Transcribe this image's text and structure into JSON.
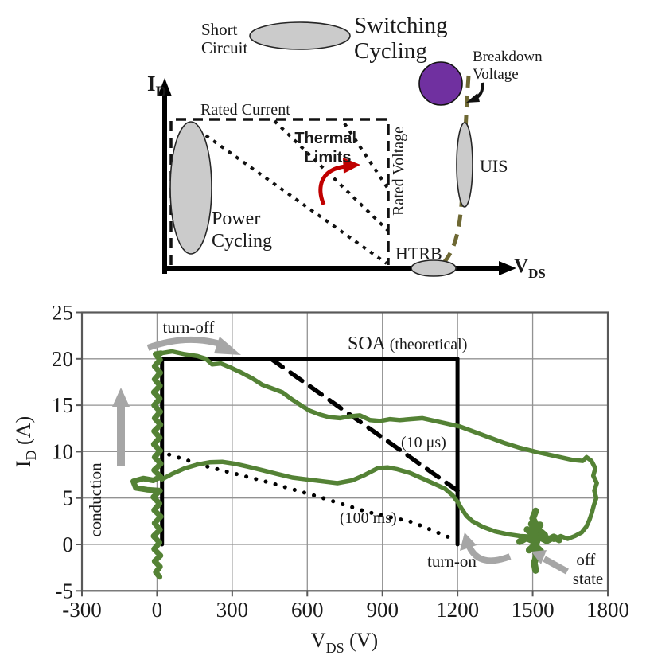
{
  "figure": {
    "top_diagram": {
      "y_axis_sym": "I",
      "y_axis_sub": "D",
      "x_axis_sym": "V",
      "x_axis_sub": "DS",
      "labels": {
        "short_circuit_1": "Short",
        "short_circuit_2": "Circuit",
        "switching_cycling_1": "Switching",
        "switching_cycling_2": "Cycling",
        "breakdown_1": "Breakdown",
        "breakdown_2": "Voltage",
        "rated_current": "Rated Current",
        "rated_voltage": "Rated Voltage",
        "thermal_1": "Thermal",
        "thermal_2": "Limits",
        "power_cycling_1": "Power",
        "power_cycling_2": "Cycling",
        "uis": "UIS",
        "htrb": "HTRB"
      },
      "colors": {
        "ellipse_fill": "#cbcbcb",
        "purple_fill": "#7030a0",
        "thermal_red": "#c00000",
        "breakdown_dash": "#6e6833",
        "axis_black": "#000000"
      }
    },
    "chart": {
      "axis_titles": {
        "y_sym": "I",
        "y_sub": "D",
        "y_unit": " (A)",
        "x_sym": "V",
        "x_sub": "DS",
        "x_unit": " (V)"
      },
      "annotations": {
        "turn_off": "turn-off",
        "conduction": "conduction",
        "soa_1": "SOA ",
        "soa_2": "(theoretical)",
        "t_10us": "(10 μs)",
        "t_100ms": "(100 ms)",
        "turn_on": "turn-on",
        "off_state_1": "off",
        "off_state_2": "state"
      },
      "colors": {
        "curve_green": "#548235",
        "grid_gray": "#929292",
        "border_gray": "#595959",
        "arrow_gray": "#a6a6a6",
        "soa_black": "#000000"
      }
    }
  },
  "chart_data": {
    "type": "line",
    "title": "",
    "xlabel": "V_DS (V)",
    "ylabel": "I_D (A)",
    "xlim": [
      -300,
      1800
    ],
    "ylim": [
      -5,
      25
    ],
    "grid": true,
    "legend": "none",
    "xticks": [
      -300,
      0,
      300,
      600,
      900,
      1200,
      1500,
      1800
    ],
    "yticks": [
      25,
      20,
      15,
      10,
      5,
      0,
      -5
    ],
    "series": [
      {
        "name": "SOA (theoretical) boundary",
        "style": "solid-black",
        "points": [
          [
            20,
            0
          ],
          [
            20,
            20
          ],
          [
            1200,
            20
          ],
          [
            1200,
            0
          ]
        ]
      },
      {
        "name": "SOA limit (10 us)",
        "style": "dashed-black",
        "points": [
          [
            455,
            20
          ],
          [
            1200,
            5.8
          ]
        ]
      },
      {
        "name": "SOA limit (100 ms)",
        "style": "dotted-black",
        "points": [
          [
            10,
            10
          ],
          [
            200,
            8.4
          ],
          [
            430,
            6.8
          ],
          [
            650,
            5.1
          ],
          [
            840,
            3.5
          ],
          [
            1020,
            2.4
          ],
          [
            1190,
            0.5
          ]
        ]
      },
      {
        "name": "switching locus: turn-off / upper path",
        "style": "green",
        "points": [
          [
            15,
            20.6
          ],
          [
            60,
            20.8
          ],
          [
            110,
            20.5
          ],
          [
            160,
            20.3
          ],
          [
            195,
            20.0
          ],
          [
            220,
            19.4
          ],
          [
            255,
            19.5
          ],
          [
            290,
            19.1
          ],
          [
            330,
            18.6
          ],
          [
            380,
            17.9
          ],
          [
            420,
            17.2
          ],
          [
            460,
            16.8
          ],
          [
            500,
            16.4
          ],
          [
            540,
            15.6
          ],
          [
            580,
            14.9
          ],
          [
            610,
            14.4
          ],
          [
            650,
            14.0
          ],
          [
            690,
            13.7
          ],
          [
            730,
            13.6
          ],
          [
            770,
            13.8
          ],
          [
            810,
            13.9
          ],
          [
            850,
            13.4
          ],
          [
            890,
            13.3
          ],
          [
            930,
            13.5
          ],
          [
            970,
            13.4
          ],
          [
            1010,
            13.5
          ],
          [
            1060,
            13.6
          ],
          [
            1110,
            13.3
          ],
          [
            1160,
            13.0
          ],
          [
            1210,
            12.7
          ],
          [
            1270,
            12.1
          ],
          [
            1330,
            11.5
          ],
          [
            1390,
            10.9
          ],
          [
            1450,
            10.4
          ],
          [
            1510,
            10.0
          ],
          [
            1560,
            9.7
          ],
          [
            1610,
            9.4
          ],
          [
            1660,
            9.1
          ],
          [
            1700,
            9.0
          ],
          [
            1715,
            9.4
          ],
          [
            1735,
            9.0
          ],
          [
            1750,
            8.2
          ],
          [
            1742,
            7.4
          ],
          [
            1756,
            6.6
          ],
          [
            1746,
            5.8
          ],
          [
            1754,
            5.0
          ],
          [
            1744,
            4.2
          ],
          [
            1736,
            3.4
          ],
          [
            1726,
            2.6
          ],
          [
            1714,
            1.9
          ],
          [
            1696,
            1.3
          ],
          [
            1668,
            0.9
          ],
          [
            1640,
            0.6
          ],
          [
            1612,
            0.9
          ],
          [
            1584,
            0.5
          ],
          [
            1556,
            0.8
          ],
          [
            1530,
            0.6
          ]
        ]
      },
      {
        "name": "switching locus: turn-on / lower path",
        "style": "green",
        "points": [
          [
            18,
            7.0
          ],
          [
            60,
            7.6
          ],
          [
            110,
            8.2
          ],
          [
            160,
            8.6
          ],
          [
            210,
            8.85
          ],
          [
            260,
            8.9
          ],
          [
            310,
            8.7
          ],
          [
            360,
            8.4
          ],
          [
            420,
            8.0
          ],
          [
            480,
            7.6
          ],
          [
            540,
            7.2
          ],
          [
            600,
            7.0
          ],
          [
            660,
            6.8
          ],
          [
            720,
            6.6
          ],
          [
            780,
            6.9
          ],
          [
            830,
            7.5
          ],
          [
            880,
            8.2
          ],
          [
            920,
            8.3
          ],
          [
            960,
            8.1
          ],
          [
            1010,
            7.7
          ],
          [
            1060,
            7.1
          ],
          [
            1110,
            6.5
          ],
          [
            1150,
            6.0
          ],
          [
            1180,
            5.3
          ],
          [
            1200,
            4.6
          ],
          [
            1215,
            3.9
          ],
          [
            1235,
            3.1
          ],
          [
            1260,
            2.5
          ],
          [
            1300,
            1.9
          ],
          [
            1350,
            1.4
          ],
          [
            1400,
            1.1
          ],
          [
            1450,
            0.9
          ],
          [
            1490,
            0.85
          ]
        ]
      },
      {
        "name": "conduction (V~0, current ramp)",
        "style": "green-conduction",
        "points": [
          [
            10,
            -3.5
          ],
          [
            -5,
            -3.0
          ],
          [
            12,
            -2.4
          ],
          [
            -10,
            -1.8
          ],
          [
            14,
            -1.2
          ],
          [
            -12,
            -0.5
          ],
          [
            10,
            0.2
          ],
          [
            -14,
            0.9
          ],
          [
            12,
            1.6
          ],
          [
            -10,
            2.3
          ],
          [
            15,
            3.0
          ],
          [
            -12,
            3.7
          ],
          [
            10,
            4.4
          ],
          [
            -15,
            5.1
          ],
          [
            12,
            5.8
          ],
          [
            -40,
            5.9
          ],
          [
            -85,
            6.1
          ],
          [
            -95,
            6.8
          ],
          [
            -55,
            7.1
          ],
          [
            -15,
            6.9
          ],
          [
            14,
            7.3
          ],
          [
            -12,
            8.0
          ],
          [
            15,
            8.7
          ],
          [
            -10,
            9.4
          ],
          [
            13,
            10.1
          ],
          [
            -13,
            10.8
          ],
          [
            11,
            11.5
          ],
          [
            -12,
            12.2
          ],
          [
            14,
            12.9
          ],
          [
            -10,
            13.6
          ],
          [
            13,
            14.3
          ],
          [
            -12,
            15.0
          ],
          [
            11,
            15.7
          ],
          [
            -13,
            16.4
          ],
          [
            12,
            17.1
          ],
          [
            -10,
            17.8
          ],
          [
            13,
            18.5
          ],
          [
            -10,
            19.2
          ],
          [
            12,
            19.9
          ],
          [
            -6,
            20.5
          ],
          [
            15,
            20.6
          ]
        ]
      },
      {
        "name": "off-state ringing cluster (~1500 V)",
        "style": "green-scribble",
        "segments": [
          [
            [
              1512,
              3.6
            ],
            [
              1500,
              2.8
            ],
            [
              1516,
              2.0
            ],
            [
              1504,
              1.2
            ],
            [
              1518,
              0.4
            ],
            [
              1506,
              -0.4
            ],
            [
              1516,
              -1.2
            ],
            [
              1506,
              -2.0
            ],
            [
              1512,
              -2.8
            ]
          ],
          [
            [
              1448,
              0.3
            ],
            [
              1475,
              0.7
            ],
            [
              1500,
              0.4
            ],
            [
              1528,
              0.8
            ],
            [
              1556,
              0.4
            ],
            [
              1584,
              0.8
            ],
            [
              1606,
              0.5
            ]
          ],
          [
            [
              1478,
              1.6
            ],
            [
              1502,
              1.1
            ],
            [
              1526,
              1.5
            ],
            [
              1548,
              1.0
            ]
          ],
          [
            [
              1486,
              -0.6
            ],
            [
              1508,
              -0.1
            ],
            [
              1532,
              -0.7
            ]
          ],
          [
            [
              1495,
              2.2
            ],
            [
              1512,
              1.5
            ],
            [
              1530,
              2.1
            ]
          ]
        ]
      }
    ]
  }
}
